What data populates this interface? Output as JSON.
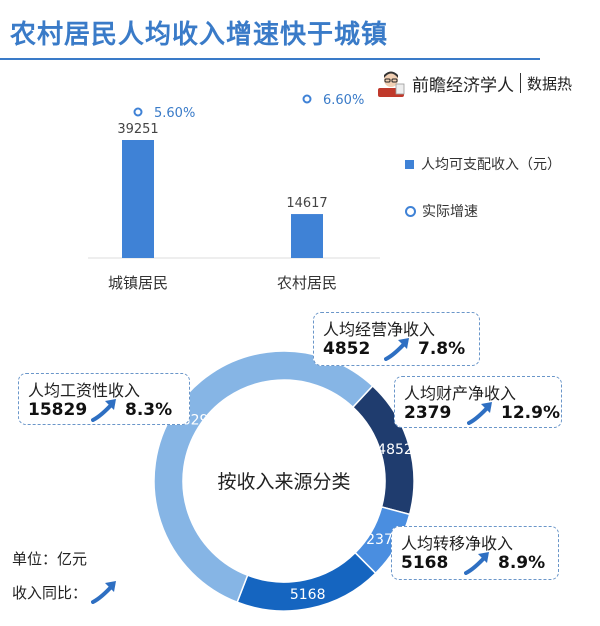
{
  "header": {
    "title": "农村居民人均收入增速快于城镇",
    "brand_name": "前瞻经济学人",
    "brand_tag": "数据热"
  },
  "legend": {
    "bar_label": "人均可支配收入（元）",
    "rate_label": "实际增速"
  },
  "colors": {
    "accent": "#3a7bc8",
    "bar": "#3f82d6",
    "donut_dark": "#1f3c6e",
    "donut_mid": "#4a8ee0",
    "donut_deep": "#1565c0",
    "donut_light": "#86b5e5"
  },
  "notes": {
    "unit": "单位：亿元",
    "yoy": "收入同比："
  },
  "chart_data": [
    {
      "type": "bar",
      "categories": [
        "城镇居民",
        "农村居民"
      ],
      "series": [
        {
          "name": "人均可支配收入（元）",
          "values": [
            39251,
            14617
          ]
        },
        {
          "name": "实际增速",
          "values": [
            "5.60%",
            "6.60%"
          ]
        }
      ],
      "legend_position": "right",
      "grid": false
    },
    {
      "type": "pie",
      "center_label": "按收入来源分类",
      "slices": [
        {
          "label": "人均工资性收入",
          "value": 15829,
          "growth": "8.3%",
          "color": "#86b5e5"
        },
        {
          "label": "人均经营净收入",
          "value": 4852,
          "growth": "7.8%",
          "color": "#1f3c6e"
        },
        {
          "label": "人均财产净收入",
          "value": 2379,
          "growth": "12.9%",
          "color": "#4a8ee0"
        },
        {
          "label": "人均转移净收入",
          "value": 5168,
          "growth": "8.9%",
          "color": "#1565c0"
        }
      ]
    }
  ]
}
